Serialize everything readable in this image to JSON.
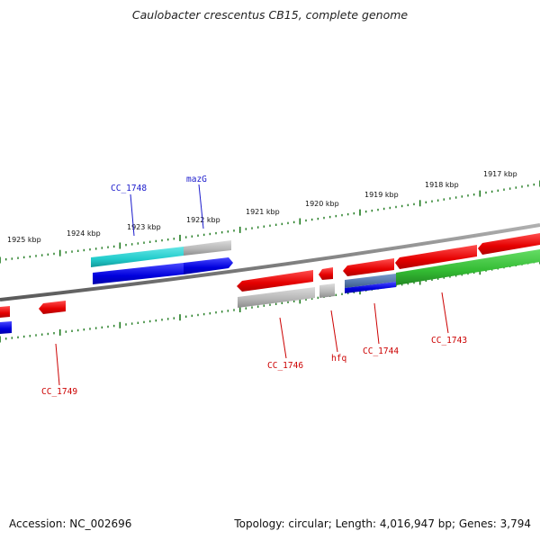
{
  "title": "Caulobacter crescentus CB15, complete genome",
  "footer": {
    "accession": "Accession: NC_002696",
    "summary": "Topology: circular; Length: 4,016,947 bp; Genes: 3,794"
  },
  "colors": {
    "backbone": "#808080",
    "ticks": "#1e7a1e",
    "red": "#e50000",
    "blue": "#0000dd",
    "cyan": "#22cccc",
    "green": "#33bb33",
    "grey": "#a8a8a8",
    "steel": "#5577aa",
    "label_blue": "#1a1acc",
    "label_red": "#cc0000"
  },
  "scale_labels": [
    "1925 kbp",
    "1924 kbp",
    "1923 kbp",
    "1922 kbp",
    "1921 kbp",
    "1920 kbp",
    "1919 kbp",
    "1918 kbp",
    "1917 kbp"
  ],
  "gene_labels": [
    {
      "id": "cc1748",
      "text": "CC_1748",
      "color": "blue"
    },
    {
      "id": "mazg",
      "text": "mazG",
      "color": "blue"
    },
    {
      "id": "cc1749",
      "text": "CC_1749",
      "color": "red"
    },
    {
      "id": "cc1746",
      "text": "CC_1746",
      "color": "red"
    },
    {
      "id": "hfq",
      "text": "hfq",
      "color": "red"
    },
    {
      "id": "cc1744",
      "text": "CC_1744",
      "color": "red"
    },
    {
      "id": "cc1743",
      "text": "CC_1743",
      "color": "red"
    }
  ]
}
